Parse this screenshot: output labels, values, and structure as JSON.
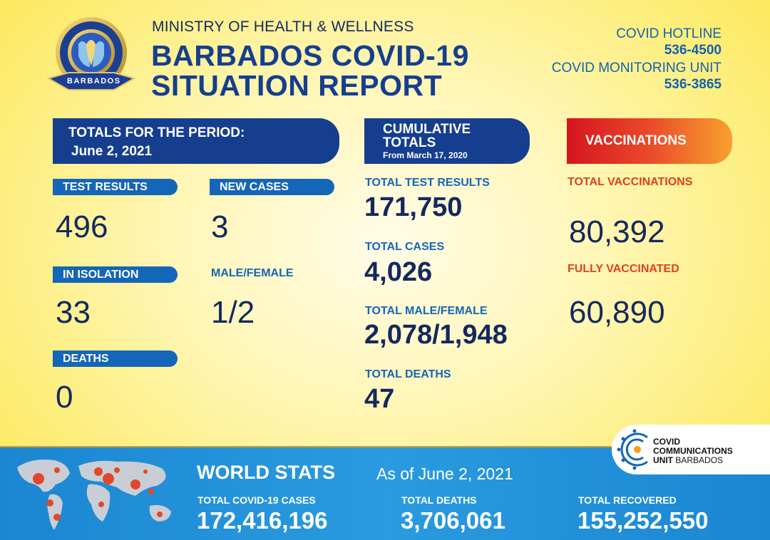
{
  "header": {
    "logo_text": "MINISTRY OF HEALTH AND WELLNESS BARBADOS",
    "ministry": "MINISTRY OF HEALTH & WELLNESS",
    "title_line1": "BARBADOS COVID-19",
    "title_line2": "SITUATION REPORT",
    "hotline_label": "COVID HOTLINE",
    "hotline_number": "536-4500",
    "monitoring_label": "COVID MONITORING UNIT",
    "monitoring_number": "536-3865"
  },
  "period": {
    "banner_line1": "TOTALS FOR THE PERIOD:",
    "banner_line2": "June 2, 2021",
    "test_results_label": "TEST RESULTS",
    "test_results_value": "496",
    "new_cases_label": "NEW CASES",
    "new_cases_value": "3",
    "isolation_label": "IN ISOLATION",
    "isolation_value": "33",
    "male_female_label": "MALE/FEMALE",
    "male_female_value": "1/2",
    "deaths_label": "DEATHS",
    "deaths_value": "0"
  },
  "cumulative": {
    "banner_line1": "CUMULATIVE",
    "banner_line2": "TOTALS",
    "banner_line3": "From March 17, 2020",
    "tests_label": "TOTAL TEST RESULTS",
    "tests_value": "171,750",
    "cases_label": "TOTAL CASES",
    "cases_value": "4,026",
    "mf_label": "TOTAL MALE/FEMALE",
    "mf_value": "2,078/1,948",
    "deaths_label": "TOTAL DEATHS",
    "deaths_value": "47"
  },
  "vaccinations": {
    "banner": "VACCINATIONS",
    "total_label": "TOTAL VACCINATIONS",
    "total_value": "80,392",
    "fully_label": "FULLY VACCINATED",
    "fully_value": "60,890"
  },
  "world": {
    "title": "WORLD STATS",
    "as_of": "As of June 2, 2021",
    "cases_label": "TOTAL COVID-19 CASES",
    "cases_value": "172,416,196",
    "deaths_label": "TOTAL DEATHS",
    "deaths_value": "3,706,061",
    "recovered_label": "TOTAL RECOVERED",
    "recovered_value": "155,252,550"
  },
  "ccu": {
    "line1": "COVID",
    "line2": "COMMUNICATIONS",
    "line3_bold": "UNIT",
    "line3_rest": "BARBADOS"
  },
  "colors": {
    "navy": "#14285f",
    "blue": "#1466b8",
    "red": "#e0401f",
    "background": "#fbe74e"
  }
}
